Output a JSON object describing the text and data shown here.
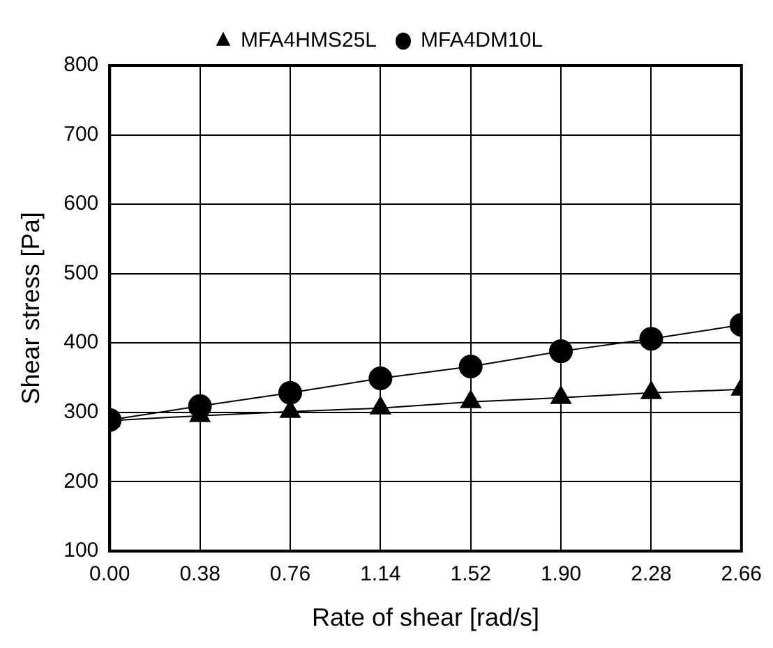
{
  "chart_data": {
    "type": "line",
    "xlabel": "Rate of shear [rad/s]",
    "ylabel": "Shear stress [Pa]",
    "x": [
      0,
      0.38,
      0.76,
      1.14,
      1.52,
      1.9,
      2.28,
      2.66
    ],
    "series": [
      {
        "name": "MFA4DM10L",
        "color": "#000000",
        "marker": "circle",
        "values": [
          289,
          309,
          328,
          349,
          366,
          388,
          406,
          426
        ]
      },
      {
        "name": "MFA4HMS25L",
        "color": "#000000",
        "marker": "triangle",
        "values": [
          288,
          295,
          301,
          306,
          315,
          321,
          328,
          333
        ]
      }
    ],
    "xlim": [
      0,
      2.66
    ],
    "xticks": [
      {
        "value": 0,
        "label": "0.00"
      },
      {
        "value": 0.38,
        "label": "0.38"
      },
      {
        "value": 0.76,
        "label": "0.76"
      },
      {
        "value": 1.14,
        "label": "1.14"
      },
      {
        "value": 1.52,
        "label": "1.52"
      },
      {
        "value": 1.9,
        "label": "1.90"
      },
      {
        "value": 2.28,
        "label": "2.28"
      },
      {
        "value": 2.66,
        "label": "2.66"
      }
    ],
    "ylim": [
      100,
      800
    ],
    "yticks": [
      100,
      200,
      300,
      400,
      500,
      600,
      700,
      800
    ],
    "grid": true,
    "legend": "top",
    "line_style": "solid"
  }
}
